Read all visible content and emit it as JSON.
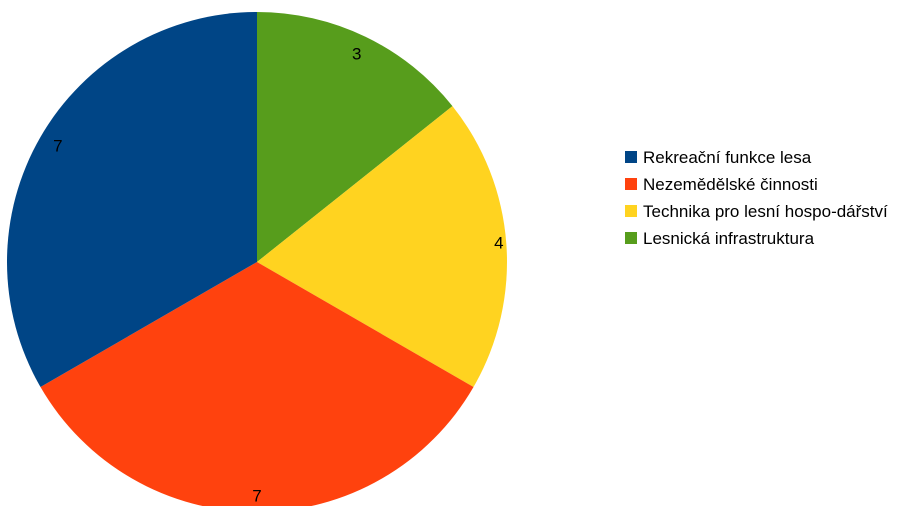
{
  "chart_data": {
    "type": "pie",
    "slices": [
      {
        "label": "Lesnická infrastruktura",
        "value": 3,
        "color": "#579d1c"
      },
      {
        "label": "Technika pro lesní hospo-dářství",
        "value": 4,
        "color": "#ffd320"
      },
      {
        "label": "Nezemědělské činnosti",
        "value": 7,
        "color": "#ff420e"
      },
      {
        "label": "Rekreační funkce lesa",
        "value": 7,
        "color": "#004586"
      }
    ],
    "legend": [
      {
        "label": "Rekreační funkce lesa",
        "color": "#004586"
      },
      {
        "label": "Nezemědělské činnosti",
        "color": "#ff420e"
      },
      {
        "label": "Technika pro lesní hospo-dářství",
        "color": "#ffd320"
      },
      {
        "label": "Lesnická infrastruktura",
        "color": "#579d1c"
      }
    ],
    "legend_position": "right",
    "start_angle": "top",
    "direction": "clockwise"
  }
}
